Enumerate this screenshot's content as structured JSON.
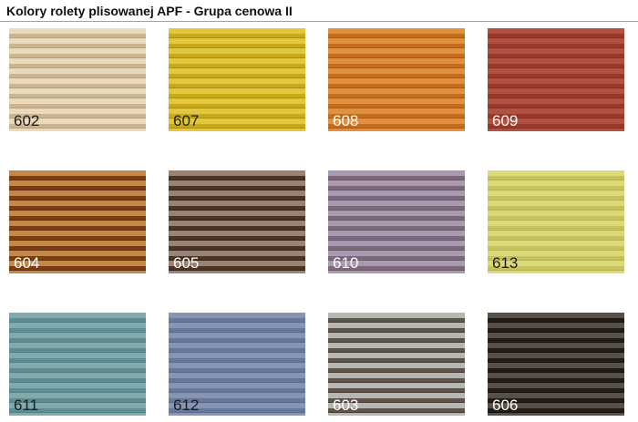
{
  "title": "Kolory rolety plisowanej APF - Grupa cenowa II",
  "swatches": [
    {
      "code": "602",
      "light": "#e7dabd",
      "dark": "#ccb491",
      "edge": "#b99d79",
      "label_color": "#1c1c1c"
    },
    {
      "code": "607",
      "light": "#e2c83e",
      "dark": "#c9a81a",
      "edge": "#ab8c0e",
      "label_color": "#1c1c1c"
    },
    {
      "code": "608",
      "light": "#e0913e",
      "dark": "#c56c1e",
      "edge": "#aa5712",
      "label_color": "#ffffff"
    },
    {
      "code": "609",
      "light": "#b05142",
      "dark": "#99392c",
      "edge": "#872f23",
      "label_color": "#ffffff"
    },
    {
      "code": "604",
      "light": "#c18a4a",
      "dark": "#7c3c13",
      "edge": "#622d0e",
      "label_color": "#ffffff"
    },
    {
      "code": "605",
      "light": "#9a8372",
      "dark": "#483528",
      "edge": "#35241b",
      "label_color": "#ffffff"
    },
    {
      "code": "610",
      "light": "#a89ab3",
      "dark": "#7e6877",
      "edge": "#6c5868",
      "label_color": "#ffffff"
    },
    {
      "code": "613",
      "light": "#dcd979",
      "dark": "#c6c35f",
      "edge": "#b6b350",
      "label_color": "#1c1c1c"
    },
    {
      "code": "611",
      "light": "#80aaac",
      "dark": "#5e8c93",
      "edge": "#507f88",
      "label_color": "#1c1c1c"
    },
    {
      "code": "612",
      "light": "#8595b3",
      "dark": "#65779a",
      "edge": "#586b8d",
      "label_color": "#1c1c1c"
    },
    {
      "code": "603",
      "light": "#b6b6b2",
      "dark": "#5e5449",
      "edge": "#423a32",
      "label_color": "#ffffff"
    },
    {
      "code": "606",
      "light": "#575049",
      "dark": "#211d16",
      "edge": "#15110d",
      "label_color": "#ffffff"
    }
  ]
}
